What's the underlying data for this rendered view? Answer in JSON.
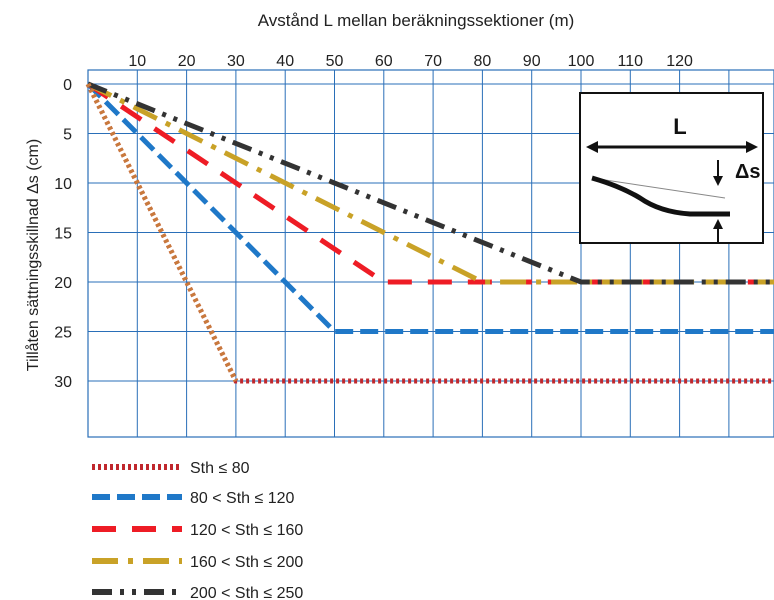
{
  "chart_data": {
    "type": "line",
    "title": "",
    "xlabel": "Avstånd L mellan beräkningssektioner (m)",
    "ylabel": "Tillåten sättningsskillnad Δs (cm)",
    "xlim": [
      0,
      140
    ],
    "ylim": [
      0,
      35
    ],
    "y_inverted": true,
    "x_axis_position": "top",
    "grid": true,
    "x_ticks": [
      10,
      20,
      30,
      40,
      50,
      60,
      70,
      80,
      90,
      100,
      110,
      120
    ],
    "y_ticks": [
      0,
      5,
      10,
      15,
      20,
      25,
      30
    ],
    "legend_position": "bottom-left",
    "series": [
      {
        "name": "Sth ≤ 80",
        "color": "#c0282d",
        "style": "dotted",
        "x": [
          0,
          30,
          140
        ],
        "y": [
          0,
          30,
          30
        ]
      },
      {
        "name": "80 < Sth ≤ 120",
        "color": "#1f78c8",
        "style": "dashed",
        "x": [
          0,
          50,
          140
        ],
        "y": [
          0,
          25,
          25
        ]
      },
      {
        "name": "120 < Sth ≤ 160",
        "color": "#ee1c25",
        "style": "long-dash",
        "x": [
          0,
          60,
          140
        ],
        "y": [
          0,
          20,
          20
        ]
      },
      {
        "name": "160 < Sth ≤ 200",
        "color": "#c9a227",
        "style": "dash-dot",
        "x": [
          0,
          80,
          140
        ],
        "y": [
          0,
          20,
          20
        ]
      },
      {
        "name": "200 < Sth ≤ 250",
        "color": "#333333",
        "style": "dash-dot-dot",
        "x": [
          0,
          100,
          140
        ],
        "y": [
          0,
          20,
          20
        ]
      }
    ],
    "extra_series": [
      {
        "color": "#c87a3c",
        "style": "dotted",
        "x": [
          0,
          30
        ],
        "y": [
          0,
          30
        ]
      }
    ],
    "inset": {
      "label_length": "L",
      "label_delta": "Δs"
    }
  }
}
